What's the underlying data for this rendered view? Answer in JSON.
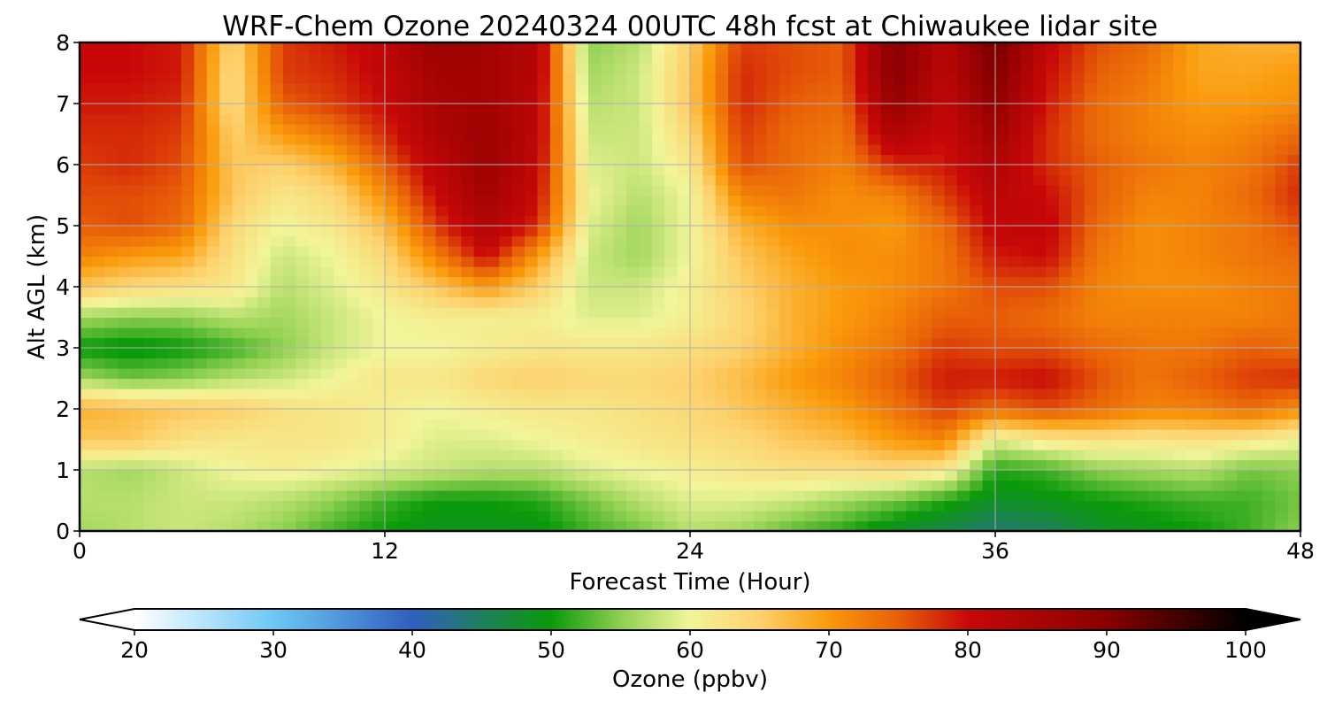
{
  "chart_data": {
    "type": "heatmap",
    "title": "WRF-Chem Ozone  20240324 00UTC 48h fcst at Chiwaukee lidar site",
    "xlabel": "Forecast Time (Hour)",
    "ylabel": "Alt AGL (km)",
    "xlim": [
      0,
      48
    ],
    "ylim": [
      0,
      8
    ],
    "x_ticks": [
      0,
      12,
      24,
      36,
      48
    ],
    "y_ticks": [
      0,
      1,
      2,
      3,
      4,
      5,
      6,
      7,
      8
    ],
    "grid": true,
    "colorbar": {
      "label": "Ozone  (ppbv)",
      "ticks": [
        20,
        30,
        40,
        50,
        60,
        70,
        80,
        90,
        100
      ],
      "range": [
        20,
        100
      ],
      "extend": "both",
      "colormap_stops": [
        {
          "value": 20,
          "color": "#ffffff"
        },
        {
          "value": 30,
          "color": "#6ec8f5"
        },
        {
          "value": 40,
          "color": "#2f5fbf"
        },
        {
          "value": 45,
          "color": "#1f7f5f"
        },
        {
          "value": 50,
          "color": "#0a9a0a"
        },
        {
          "value": 55,
          "color": "#8fd050"
        },
        {
          "value": 60,
          "color": "#f2f59a"
        },
        {
          "value": 65,
          "color": "#fdd16c"
        },
        {
          "value": 70,
          "color": "#fa9a0a"
        },
        {
          "value": 75,
          "color": "#e85f08"
        },
        {
          "value": 80,
          "color": "#c80808"
        },
        {
          "value": 90,
          "color": "#8a0000"
        },
        {
          "value": 100,
          "color": "#000000"
        }
      ]
    },
    "x": [
      0,
      2,
      4,
      6,
      8,
      10,
      12,
      14,
      16,
      18,
      20,
      22,
      24,
      26,
      28,
      30,
      32,
      34,
      36,
      38,
      40,
      42,
      44,
      46,
      48
    ],
    "y": [
      0,
      0.5,
      1,
      1.5,
      2,
      2.5,
      3,
      3.5,
      4,
      4.5,
      5,
      5.5,
      6,
      6.5,
      7,
      7.5,
      8
    ],
    "z": [
      [
        56,
        57,
        58,
        57,
        55,
        52,
        50,
        49,
        49,
        49,
        52,
        54,
        57,
        56,
        53,
        51,
        48,
        46,
        44,
        45,
        48,
        49,
        50,
        52,
        55
      ],
      [
        57,
        57,
        58,
        58,
        57,
        55,
        52,
        50,
        50,
        51,
        54,
        57,
        59,
        59,
        58,
        56,
        54,
        51,
        48,
        49,
        50,
        51,
        52,
        52,
        54
      ],
      [
        57,
        56,
        58,
        60,
        61,
        60,
        59,
        58,
        57,
        57,
        59,
        60,
        61,
        62,
        63,
        63,
        64,
        62,
        51,
        52,
        55,
        56,
        57,
        54,
        55
      ],
      [
        66,
        66,
        63,
        62,
        62,
        62,
        61,
        59,
        59,
        60,
        61,
        62,
        63,
        64,
        66,
        67,
        70,
        72,
        59,
        62,
        63,
        62,
        63,
        62,
        60
      ],
      [
        68,
        67,
        66,
        65,
        63,
        62,
        61,
        60,
        61,
        62,
        62,
        63,
        64,
        66,
        68,
        70,
        73,
        77,
        74,
        76,
        74,
        72,
        72,
        74,
        71
      ],
      [
        56,
        54,
        55,
        57,
        58,
        60,
        62,
        62,
        64,
        65,
        64,
        64,
        65,
        67,
        70,
        72,
        75,
        79,
        79,
        80,
        76,
        73,
        75,
        77,
        78
      ],
      [
        50,
        49,
        50,
        52,
        55,
        58,
        60,
        60,
        61,
        62,
        62,
        62,
        63,
        65,
        68,
        71,
        73,
        77,
        76,
        76,
        74,
        73,
        73,
        75,
        74
      ],
      [
        56,
        55,
        55,
        57,
        56,
        58,
        60,
        61,
        61,
        61,
        59,
        59,
        61,
        64,
        68,
        70,
        72,
        75,
        75,
        74,
        72,
        72,
        72,
        72,
        73
      ],
      [
        66,
        64,
        63,
        62,
        57,
        59,
        62,
        66,
        70,
        65,
        58,
        58,
        61,
        65,
        68,
        70,
        71,
        73,
        76,
        76,
        72,
        71,
        71,
        72,
        73
      ],
      [
        72,
        70,
        69,
        63,
        58,
        60,
        64,
        72,
        80,
        70,
        58,
        56,
        60,
        66,
        69,
        71,
        71,
        73,
        79,
        80,
        73,
        71,
        72,
        73,
        74
      ],
      [
        75,
        76,
        74,
        64,
        60,
        62,
        67,
        77,
        84,
        78,
        59,
        56,
        60,
        68,
        71,
        71,
        70,
        74,
        81,
        81,
        74,
        71,
        72,
        73,
        76
      ],
      [
        76,
        76,
        75,
        66,
        62,
        64,
        71,
        80,
        86,
        80,
        60,
        57,
        60,
        72,
        73,
        71,
        72,
        77,
        82,
        80,
        75,
        72,
        72,
        74,
        78
      ],
      [
        77,
        78,
        76,
        66,
        65,
        68,
        75,
        82,
        87,
        81,
        59,
        58,
        62,
        76,
        74,
        72,
        78,
        79,
        84,
        78,
        75,
        73,
        72,
        73,
        77
      ],
      [
        78,
        78,
        77,
        65,
        70,
        73,
        78,
        84,
        87,
        82,
        58,
        58,
        64,
        77,
        74,
        73,
        84,
        80,
        86,
        78,
        74,
        72,
        71,
        72,
        74
      ],
      [
        79,
        79,
        78,
        63,
        75,
        77,
        80,
        85,
        86,
        82,
        57,
        58,
        66,
        78,
        75,
        74,
        88,
        81,
        89,
        79,
        74,
        72,
        70,
        70,
        71
      ],
      [
        80,
        80,
        79,
        63,
        77,
        78,
        81,
        86,
        86,
        83,
        56,
        58,
        66,
        78,
        76,
        75,
        90,
        82,
        91,
        80,
        75,
        73,
        69,
        69,
        70
      ],
      [
        80,
        80,
        79,
        64,
        77,
        79,
        82,
        87,
        86,
        83,
        55,
        57,
        65,
        77,
        76,
        75,
        90,
        82,
        92,
        81,
        76,
        74,
        69,
        68,
        68
      ]
    ]
  }
}
